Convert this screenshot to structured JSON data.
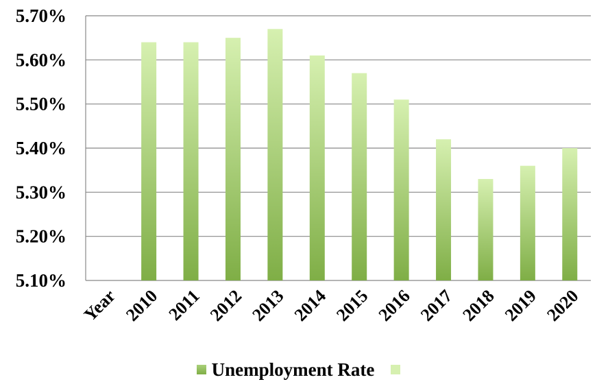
{
  "chart_data": {
    "type": "bar",
    "categories": [
      "Year",
      "2010",
      "2011",
      "2012",
      "2013",
      "2014",
      "2015",
      "2016",
      "2017",
      "2018",
      "2019",
      "2020"
    ],
    "series": [
      {
        "name": "Unemployment Rate",
        "values": [
          null,
          5.64,
          5.64,
          5.65,
          5.67,
          5.61,
          5.57,
          5.51,
          5.42,
          5.33,
          5.36,
          5.4
        ]
      }
    ],
    "ylim": [
      5.1,
      5.7
    ],
    "yticks": [
      "5.70%",
      "5.60%",
      "5.50%",
      "5.40%",
      "5.30%",
      "5.20%",
      "5.10%"
    ],
    "ytick_values": [
      5.7,
      5.6,
      5.5,
      5.4,
      5.3,
      5.2,
      5.1
    ],
    "grid": true,
    "legend_position": "bottom",
    "colors": {
      "bar_top": "#d6f0b0",
      "bar_bottom": "#7fae46",
      "grid": "#888888"
    }
  },
  "legend": {
    "series_label": "Unemployment Rate"
  }
}
